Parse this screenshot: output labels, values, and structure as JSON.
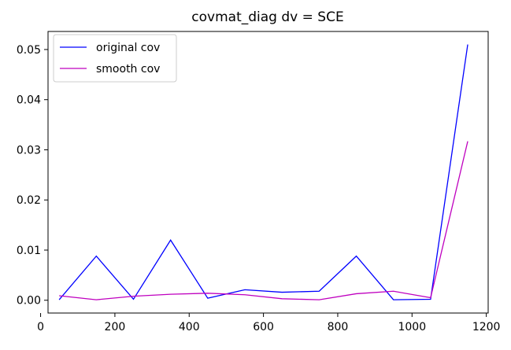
{
  "chart_data": {
    "type": "line",
    "title": "covmat_diag dv = SCE",
    "xlabel": "",
    "ylabel": "",
    "xlim": [
      20,
      1205
    ],
    "ylim": [
      -0.00255,
      0.0536
    ],
    "x_ticks": [
      0,
      200,
      400,
      600,
      800,
      1000,
      1200
    ],
    "y_ticks": [
      0.0,
      0.01,
      0.02,
      0.03,
      0.04,
      0.05
    ],
    "y_tick_labels": [
      "0.00",
      "0.01",
      "0.02",
      "0.03",
      "0.04",
      "0.05"
    ],
    "grid": false,
    "legend_position": "upper left",
    "x": [
      50,
      150,
      250,
      350,
      450,
      550,
      650,
      750,
      850,
      950,
      1050,
      1150
    ],
    "series": [
      {
        "name": "original cov",
        "color": "#0000ff",
        "values": [
          0.0001,
          0.0088,
          0.0002,
          0.012,
          0.0004,
          0.0021,
          0.0016,
          0.0018,
          0.0088,
          0.0001,
          0.0002,
          0.051
        ]
      },
      {
        "name": "smooth cov",
        "color": "#bf00bf",
        "values": [
          0.0009,
          0.0001,
          0.0008,
          0.0012,
          0.0014,
          0.0011,
          0.0003,
          0.0001,
          0.0013,
          0.0018,
          0.0005,
          0.0317
        ]
      }
    ]
  }
}
